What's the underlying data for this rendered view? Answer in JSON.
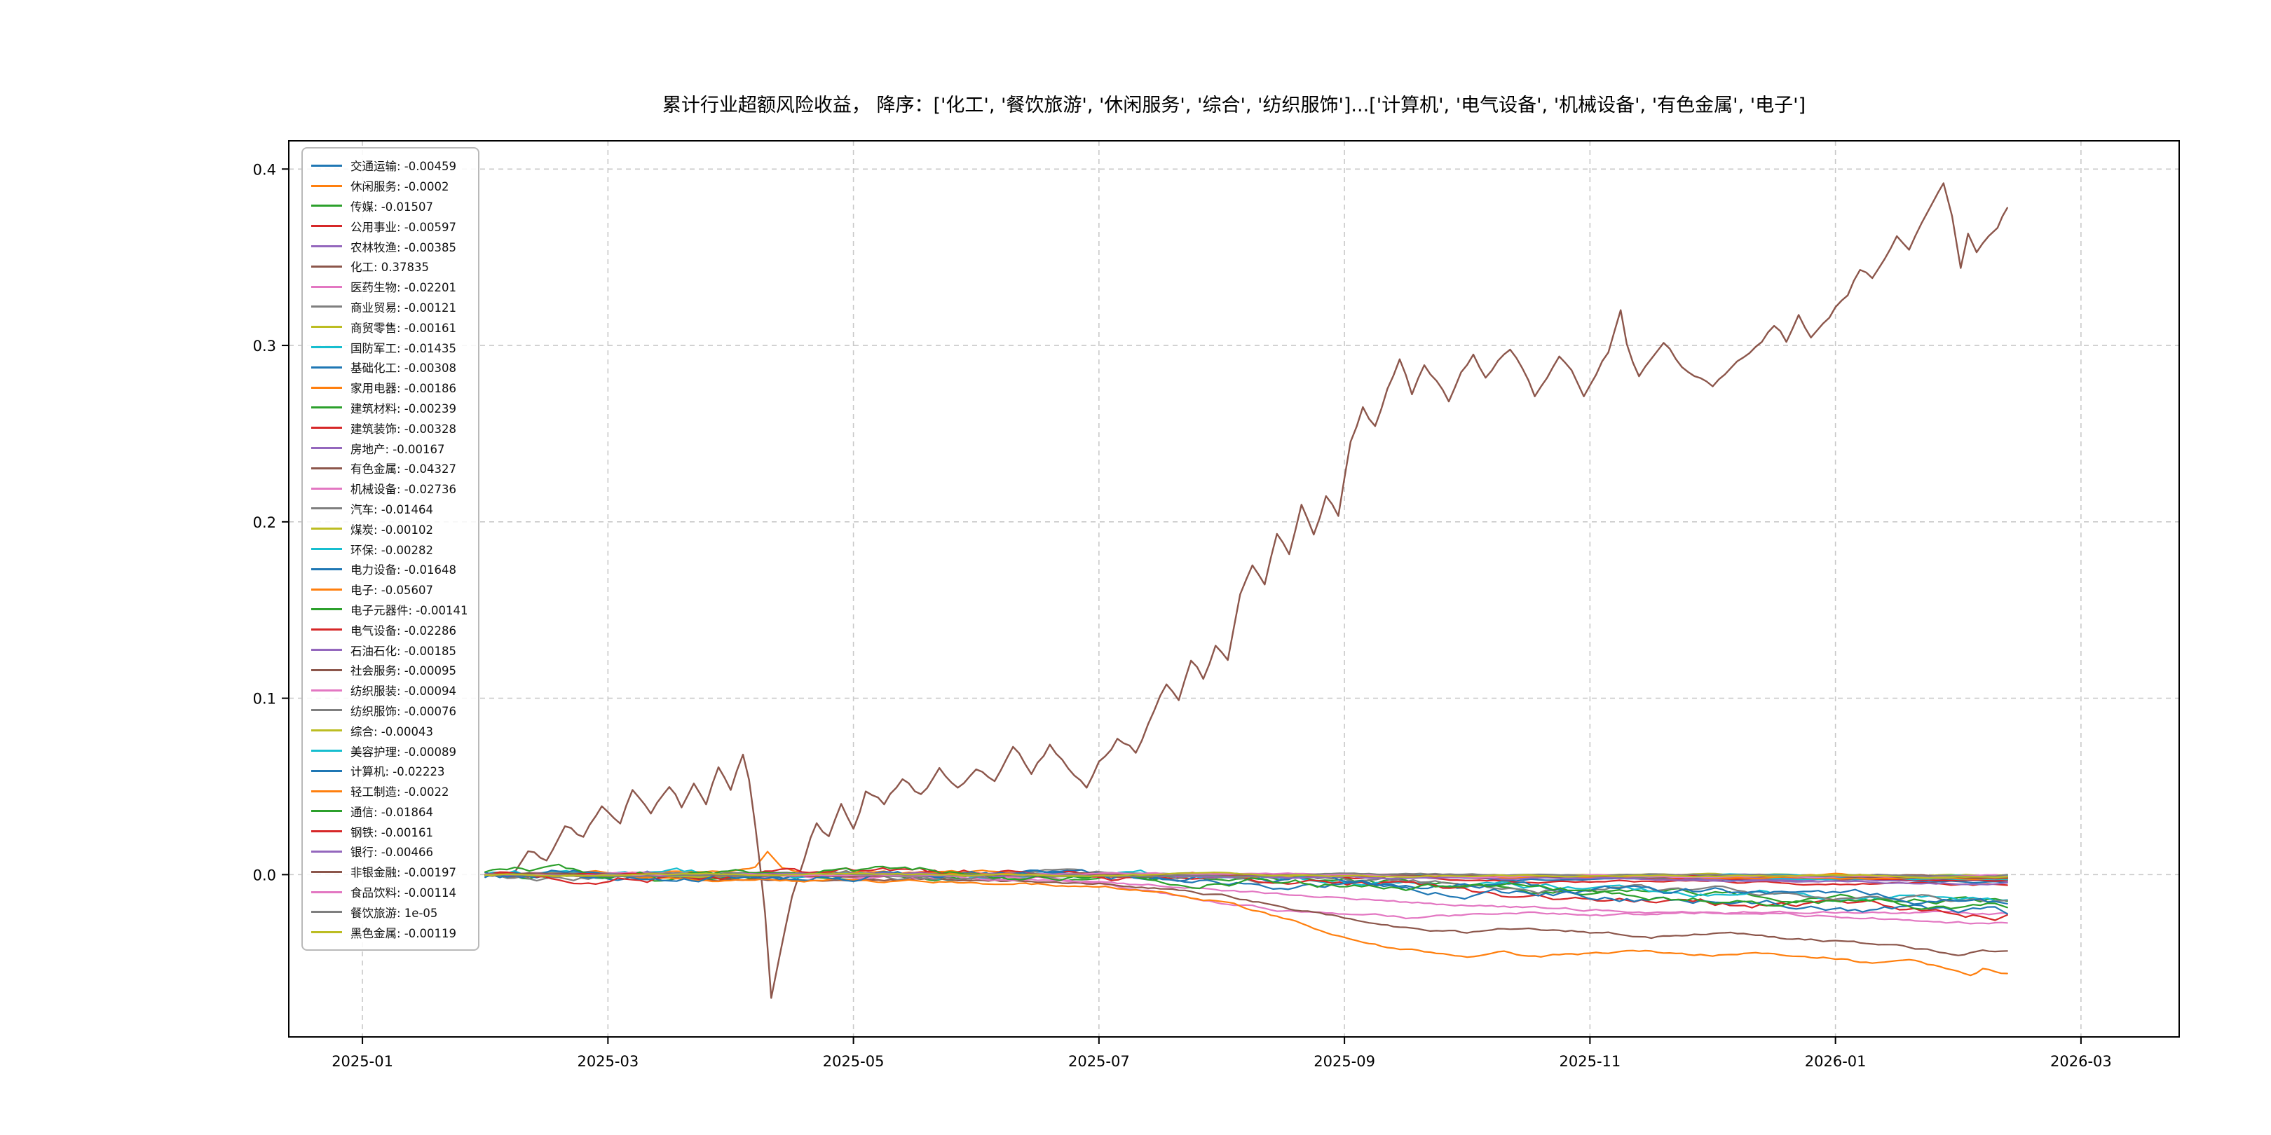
{
  "chart_data": {
    "type": "line",
    "title": "累计行业超额风险收益， 降序：['化工', '餐饮旅游', '休闲服务', '综合', '纺织服饰']...['计算机', '电气设备', '机械设备', '有色金属', '电子']",
    "x_tick_labels": [
      "2025-01",
      "2025-03",
      "2025-05",
      "2025-07",
      "2025-09",
      "2025-11",
      "2026-01",
      "2026-03"
    ],
    "x_tick_months": [
      0,
      2,
      4,
      6,
      8,
      10,
      12,
      14
    ],
    "x_range_months": [
      -0.6,
      14.8
    ],
    "y_ticks": [
      0.0,
      0.1,
      0.2,
      0.3,
      0.4
    ],
    "y_tick_labels": [
      "0.0",
      "0.1",
      "0.2",
      "0.3",
      "0.4"
    ],
    "y_range": [
      -0.092,
      0.416
    ],
    "grid": "dashed",
    "grid_color": "#c9c9c9",
    "frame_color": "#000000",
    "legend_position": "upper-left",
    "series": [
      {
        "name": "交通运输",
        "label_value": "-0.00459",
        "value": -0.00459,
        "color": "#1f77b4"
      },
      {
        "name": "休闲服务",
        "label_value": "-0.0002",
        "value": -0.0002,
        "color": "#ff7f0e",
        "keypoints": [
          [
            1.0,
            0
          ],
          [
            2.0,
            0.001
          ],
          [
            3.0,
            0.001
          ],
          [
            3.2,
            0.003
          ],
          [
            3.3,
            0.013
          ],
          [
            3.42,
            0.003
          ],
          [
            3.6,
            0.0
          ],
          [
            5.0,
            0.001
          ],
          [
            7.0,
            -0.001
          ],
          [
            9.0,
            0.0
          ],
          [
            11.0,
            -0.001
          ],
          [
            13.4,
            -0.0002
          ]
        ]
      },
      {
        "name": "传媒",
        "label_value": "-0.01507",
        "value": -0.01507,
        "color": "#2ca02c"
      },
      {
        "name": "公用事业",
        "label_value": "-0.00597",
        "value": -0.00597,
        "color": "#d62728"
      },
      {
        "name": "农林牧渔",
        "label_value": "-0.00385",
        "value": -0.00385,
        "color": "#9467bd"
      },
      {
        "name": "化工",
        "label_value": "0.37835",
        "value": 0.37835,
        "color": "#8c564b",
        "noise": 0.0035,
        "keypoints": [
          [
            1.2,
            0
          ],
          [
            1.35,
            0.012
          ],
          [
            1.5,
            0.008
          ],
          [
            1.65,
            0.03
          ],
          [
            1.8,
            0.022
          ],
          [
            1.95,
            0.04
          ],
          [
            2.1,
            0.03
          ],
          [
            2.2,
            0.048
          ],
          [
            2.35,
            0.036
          ],
          [
            2.5,
            0.052
          ],
          [
            2.6,
            0.04
          ],
          [
            2.7,
            0.055
          ],
          [
            2.8,
            0.045
          ],
          [
            2.9,
            0.065
          ],
          [
            3.0,
            0.05
          ],
          [
            3.1,
            0.07
          ],
          [
            3.15,
            0.055
          ],
          [
            3.2,
            0.03
          ],
          [
            3.28,
            -0.02
          ],
          [
            3.33,
            -0.07
          ],
          [
            3.4,
            -0.045
          ],
          [
            3.5,
            -0.01
          ],
          [
            3.6,
            0.01
          ],
          [
            3.7,
            0.03
          ],
          [
            3.8,
            0.022
          ],
          [
            3.9,
            0.042
          ],
          [
            4.0,
            0.03
          ],
          [
            4.1,
            0.05
          ],
          [
            4.25,
            0.04
          ],
          [
            4.4,
            0.055
          ],
          [
            4.55,
            0.045
          ],
          [
            4.7,
            0.06
          ],
          [
            4.85,
            0.05
          ],
          [
            5.0,
            0.062
          ],
          [
            5.15,
            0.052
          ],
          [
            5.3,
            0.068
          ],
          [
            5.45,
            0.055
          ],
          [
            5.6,
            0.072
          ],
          [
            5.75,
            0.06
          ],
          [
            5.9,
            0.052
          ],
          [
            6.0,
            0.068
          ],
          [
            6.15,
            0.08
          ],
          [
            6.3,
            0.072
          ],
          [
            6.45,
            0.095
          ],
          [
            6.55,
            0.11
          ],
          [
            6.65,
            0.1
          ],
          [
            6.75,
            0.12
          ],
          [
            6.85,
            0.11
          ],
          [
            6.95,
            0.13
          ],
          [
            7.05,
            0.12
          ],
          [
            7.15,
            0.155
          ],
          [
            7.25,
            0.175
          ],
          [
            7.35,
            0.165
          ],
          [
            7.45,
            0.195
          ],
          [
            7.55,
            0.185
          ],
          [
            7.65,
            0.21
          ],
          [
            7.75,
            0.195
          ],
          [
            7.85,
            0.215
          ],
          [
            7.95,
            0.205
          ],
          [
            8.05,
            0.245
          ],
          [
            8.15,
            0.265
          ],
          [
            8.25,
            0.255
          ],
          [
            8.35,
            0.275
          ],
          [
            8.45,
            0.29
          ],
          [
            8.55,
            0.27
          ],
          [
            8.65,
            0.288
          ],
          [
            8.75,
            0.278
          ],
          [
            8.85,
            0.268
          ],
          [
            8.95,
            0.285
          ],
          [
            9.05,
            0.295
          ],
          [
            9.15,
            0.28
          ],
          [
            9.25,
            0.292
          ],
          [
            9.35,
            0.3
          ],
          [
            9.45,
            0.287
          ],
          [
            9.55,
            0.27
          ],
          [
            9.65,
            0.283
          ],
          [
            9.75,
            0.297
          ],
          [
            9.85,
            0.29
          ],
          [
            9.95,
            0.272
          ],
          [
            10.05,
            0.282
          ],
          [
            10.15,
            0.295
          ],
          [
            10.25,
            0.318
          ],
          [
            10.3,
            0.3
          ],
          [
            10.4,
            0.282
          ],
          [
            10.5,
            0.29
          ],
          [
            10.6,
            0.298
          ],
          [
            10.7,
            0.29
          ],
          [
            10.8,
            0.283
          ],
          [
            10.9,
            0.278
          ],
          [
            11.0,
            0.272
          ],
          [
            11.1,
            0.28
          ],
          [
            11.2,
            0.287
          ],
          [
            11.3,
            0.293
          ],
          [
            11.4,
            0.3
          ],
          [
            11.5,
            0.308
          ],
          [
            11.6,
            0.3
          ],
          [
            11.7,
            0.315
          ],
          [
            11.8,
            0.305
          ],
          [
            11.9,
            0.312
          ],
          [
            12.0,
            0.322
          ],
          [
            12.1,
            0.33
          ],
          [
            12.2,
            0.345
          ],
          [
            12.3,
            0.338
          ],
          [
            12.4,
            0.352
          ],
          [
            12.5,
            0.362
          ],
          [
            12.6,
            0.355
          ],
          [
            12.7,
            0.372
          ],
          [
            12.8,
            0.382
          ],
          [
            12.88,
            0.392
          ],
          [
            12.95,
            0.372
          ],
          [
            13.02,
            0.342
          ],
          [
            13.08,
            0.362
          ],
          [
            13.15,
            0.352
          ],
          [
            13.25,
            0.362
          ],
          [
            13.32,
            0.368
          ],
          [
            13.4,
            0.378
          ]
        ]
      },
      {
        "name": "医药生物",
        "label_value": "-0.02201",
        "value": -0.02201,
        "color": "#e377c2",
        "keypoints": [
          [
            1.0,
            0
          ],
          [
            5.5,
            -0.001
          ],
          [
            6.0,
            -0.004
          ],
          [
            6.5,
            -0.01
          ],
          [
            7.0,
            -0.015
          ],
          [
            7.5,
            -0.02
          ],
          [
            8.0,
            -0.023
          ],
          [
            8.5,
            -0.025
          ],
          [
            9.5,
            -0.022
          ],
          [
            10.5,
            -0.023
          ],
          [
            11.5,
            -0.021
          ],
          [
            12.5,
            -0.022
          ],
          [
            13.4,
            -0.02201
          ]
        ]
      },
      {
        "name": "商业贸易",
        "label_value": "-0.00121",
        "value": -0.00121,
        "color": "#7f7f7f"
      },
      {
        "name": "商贸零售",
        "label_value": "-0.00161",
        "value": -0.00161,
        "color": "#bcbd22"
      },
      {
        "name": "国防军工",
        "label_value": "-0.01435",
        "value": -0.01435,
        "color": "#17becf"
      },
      {
        "name": "基础化工",
        "label_value": "-0.00308",
        "value": -0.00308,
        "color": "#1f77b4"
      },
      {
        "name": "家用电器",
        "label_value": "-0.00186",
        "value": -0.00186,
        "color": "#ff7f0e"
      },
      {
        "name": "建筑材料",
        "label_value": "-0.00239",
        "value": -0.00239,
        "color": "#2ca02c"
      },
      {
        "name": "建筑装饰",
        "label_value": "-0.00328",
        "value": -0.00328,
        "color": "#d62728"
      },
      {
        "name": "房地产",
        "label_value": "-0.00167",
        "value": -0.00167,
        "color": "#9467bd"
      },
      {
        "name": "有色金属",
        "label_value": "-0.04327",
        "value": -0.04327,
        "color": "#8c564b",
        "keypoints": [
          [
            1.0,
            0
          ],
          [
            3.0,
            -0.002
          ],
          [
            5.0,
            -0.003
          ],
          [
            6.0,
            -0.005
          ],
          [
            6.5,
            -0.008
          ],
          [
            7.0,
            -0.012
          ],
          [
            7.5,
            -0.018
          ],
          [
            8.0,
            -0.025
          ],
          [
            8.5,
            -0.03
          ],
          [
            9.0,
            -0.033
          ],
          [
            9.5,
            -0.03
          ],
          [
            10.0,
            -0.032
          ],
          [
            10.5,
            -0.035
          ],
          [
            11.0,
            -0.033
          ],
          [
            11.5,
            -0.036
          ],
          [
            12.0,
            -0.038
          ],
          [
            12.5,
            -0.04
          ],
          [
            12.8,
            -0.043
          ],
          [
            13.0,
            -0.046
          ],
          [
            13.2,
            -0.042
          ],
          [
            13.4,
            -0.04327
          ]
        ]
      },
      {
        "name": "机械设备",
        "label_value": "-0.02736",
        "value": -0.02736,
        "color": "#e377c2",
        "keypoints": [
          [
            1.0,
            0
          ],
          [
            5.0,
            -0.002
          ],
          [
            6.0,
            -0.004
          ],
          [
            7.0,
            -0.008
          ],
          [
            8.0,
            -0.014
          ],
          [
            9.0,
            -0.018
          ],
          [
            10.0,
            -0.02
          ],
          [
            11.0,
            -0.022
          ],
          [
            12.0,
            -0.024
          ],
          [
            13.0,
            -0.027
          ],
          [
            13.4,
            -0.02736
          ]
        ]
      },
      {
        "name": "汽车",
        "label_value": "-0.01464",
        "value": -0.01464,
        "color": "#7f7f7f"
      },
      {
        "name": "煤炭",
        "label_value": "-0.00102",
        "value": -0.00102,
        "color": "#bcbd22"
      },
      {
        "name": "环保",
        "label_value": "-0.00282",
        "value": -0.00282,
        "color": "#17becf"
      },
      {
        "name": "电力设备",
        "label_value": "-0.01648",
        "value": -0.01648,
        "color": "#1f77b4"
      },
      {
        "name": "电子",
        "label_value": "-0.05607",
        "value": -0.05607,
        "color": "#ff7f0e",
        "keypoints": [
          [
            1.0,
            0
          ],
          [
            3.0,
            -0.003
          ],
          [
            5.0,
            -0.004
          ],
          [
            6.0,
            -0.006
          ],
          [
            6.5,
            -0.01
          ],
          [
            7.0,
            -0.015
          ],
          [
            7.5,
            -0.025
          ],
          [
            8.0,
            -0.035
          ],
          [
            8.3,
            -0.04
          ],
          [
            8.6,
            -0.043
          ],
          [
            9.0,
            -0.046
          ],
          [
            9.3,
            -0.044
          ],
          [
            9.6,
            -0.047
          ],
          [
            10.0,
            -0.045
          ],
          [
            10.5,
            -0.044
          ],
          [
            11.0,
            -0.046
          ],
          [
            11.5,
            -0.045
          ],
          [
            12.0,
            -0.047
          ],
          [
            12.3,
            -0.05
          ],
          [
            12.6,
            -0.048
          ],
          [
            12.9,
            -0.053
          ],
          [
            13.1,
            -0.058
          ],
          [
            13.2,
            -0.054
          ],
          [
            13.4,
            -0.05607
          ]
        ]
      },
      {
        "name": "电子元器件",
        "label_value": "-0.00141",
        "value": -0.00141,
        "color": "#2ca02c"
      },
      {
        "name": "电气设备",
        "label_value": "-0.02286",
        "value": -0.02286,
        "color": "#d62728"
      },
      {
        "name": "石油石化",
        "label_value": "-0.00185",
        "value": -0.00185,
        "color": "#9467bd"
      },
      {
        "name": "社会服务",
        "label_value": "-0.00095",
        "value": -0.00095,
        "color": "#8c564b"
      },
      {
        "name": "纺织服装",
        "label_value": "-0.00094",
        "value": -0.00094,
        "color": "#e377c2"
      },
      {
        "name": "纺织服饰",
        "label_value": "-0.00076",
        "value": -0.00076,
        "color": "#7f7f7f"
      },
      {
        "name": "综合",
        "label_value": "-0.00043",
        "value": -0.00043,
        "color": "#bcbd22"
      },
      {
        "name": "美容护理",
        "label_value": "-0.00089",
        "value": -0.00089,
        "color": "#17becf"
      },
      {
        "name": "计算机",
        "label_value": "-0.02223",
        "value": -0.02223,
        "color": "#1f77b4"
      },
      {
        "name": "轻工制造",
        "label_value": "-0.0022",
        "value": -0.0022,
        "color": "#ff7f0e"
      },
      {
        "name": "通信",
        "label_value": "-0.01864",
        "value": -0.01864,
        "color": "#2ca02c"
      },
      {
        "name": "钢铁",
        "label_value": "-0.00161",
        "value": -0.00161,
        "color": "#d62728"
      },
      {
        "name": "银行",
        "label_value": "-0.00466",
        "value": -0.00466,
        "color": "#9467bd"
      },
      {
        "name": "非银金融",
        "label_value": "-0.00197",
        "value": -0.00197,
        "color": "#8c564b"
      },
      {
        "name": "食品饮料",
        "label_value": "-0.00114",
        "value": -0.00114,
        "color": "#e377c2"
      },
      {
        "name": "餐饮旅游",
        "label_value": "1e-05",
        "value": 1e-05,
        "color": "#7f7f7f"
      },
      {
        "name": "黑色金属",
        "label_value": "-0.00119",
        "value": -0.00119,
        "color": "#bcbd22"
      }
    ]
  }
}
